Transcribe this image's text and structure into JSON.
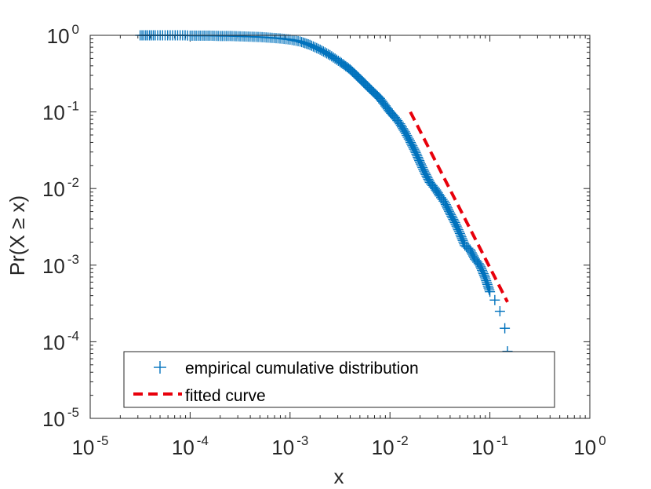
{
  "chart_data": {
    "type": "scatter",
    "title": "",
    "xlabel": "x",
    "ylabel": "Pr(X ≥ x)",
    "xscale": "log",
    "yscale": "log",
    "xlim": [
      1e-05,
      1
    ],
    "ylim": [
      1e-05,
      1
    ],
    "x_ticks": [
      {
        "base": "10",
        "exp": "-5"
      },
      {
        "base": "10",
        "exp": "-4"
      },
      {
        "base": "10",
        "exp": "-3"
      },
      {
        "base": "10",
        "exp": "-2"
      },
      {
        "base": "10",
        "exp": "-1"
      },
      {
        "base": "10",
        "exp": "0"
      }
    ],
    "y_ticks": [
      {
        "base": "10",
        "exp": "-5"
      },
      {
        "base": "10",
        "exp": "-4"
      },
      {
        "base": "10",
        "exp": "-3"
      },
      {
        "base": "10",
        "exp": "-2"
      },
      {
        "base": "10",
        "exp": "-1"
      },
      {
        "base": "10",
        "exp": "0"
      }
    ],
    "grid": false,
    "legend_position": "bottom",
    "series": [
      {
        "name": "empirical cumulative distribution",
        "style": "plus-markers",
        "color": "#0072BD",
        "x": [
          3.16e-05,
          4.47e-05,
          5.01e-05,
          5.62e-05,
          6.31e-05,
          7.08e-05,
          7.94e-05,
          8.91e-05,
          0.0001,
          0.000126,
          0.000158,
          0.0002,
          0.000251,
          0.000316,
          0.000398,
          0.000501,
          0.000631,
          0.000794,
          0.001,
          0.00126,
          0.00158,
          0.002,
          0.00251,
          0.00316,
          0.00398,
          0.00501,
          0.00631,
          0.00794,
          0.01,
          0.0112,
          0.0126,
          0.0141,
          0.0158,
          0.0178,
          0.02,
          0.0224,
          0.0251,
          0.0282,
          0.0316,
          0.0355,
          0.0398,
          0.0447,
          0.0501,
          0.0562,
          0.0631,
          0.0708,
          0.0794,
          0.0891,
          0.1,
          0.112,
          0.126,
          0.141,
          0.15
        ],
        "y": [
          1.0,
          1.0,
          1.0,
          1.0,
          1.0,
          1.0,
          1.0,
          1.0,
          0.99,
          0.99,
          0.99,
          0.98,
          0.98,
          0.97,
          0.96,
          0.95,
          0.93,
          0.91,
          0.88,
          0.83,
          0.75,
          0.65,
          0.55,
          0.45,
          0.36,
          0.27,
          0.2,
          0.15,
          0.1,
          0.085,
          0.07,
          0.055,
          0.042,
          0.031,
          0.022,
          0.016,
          0.012,
          0.01,
          0.008,
          0.0065,
          0.0048,
          0.0036,
          0.0026,
          0.0018,
          0.0016,
          0.0012,
          0.001,
          0.0007,
          0.00045,
          0.00035,
          0.00025,
          0.00015,
          7.5e-05
        ]
      },
      {
        "name": "fitted curve",
        "style": "dashed-line",
        "color": "#E8000B",
        "x": [
          0.016,
          0.15
        ],
        "y": [
          0.1,
          0.00033
        ]
      }
    ]
  }
}
